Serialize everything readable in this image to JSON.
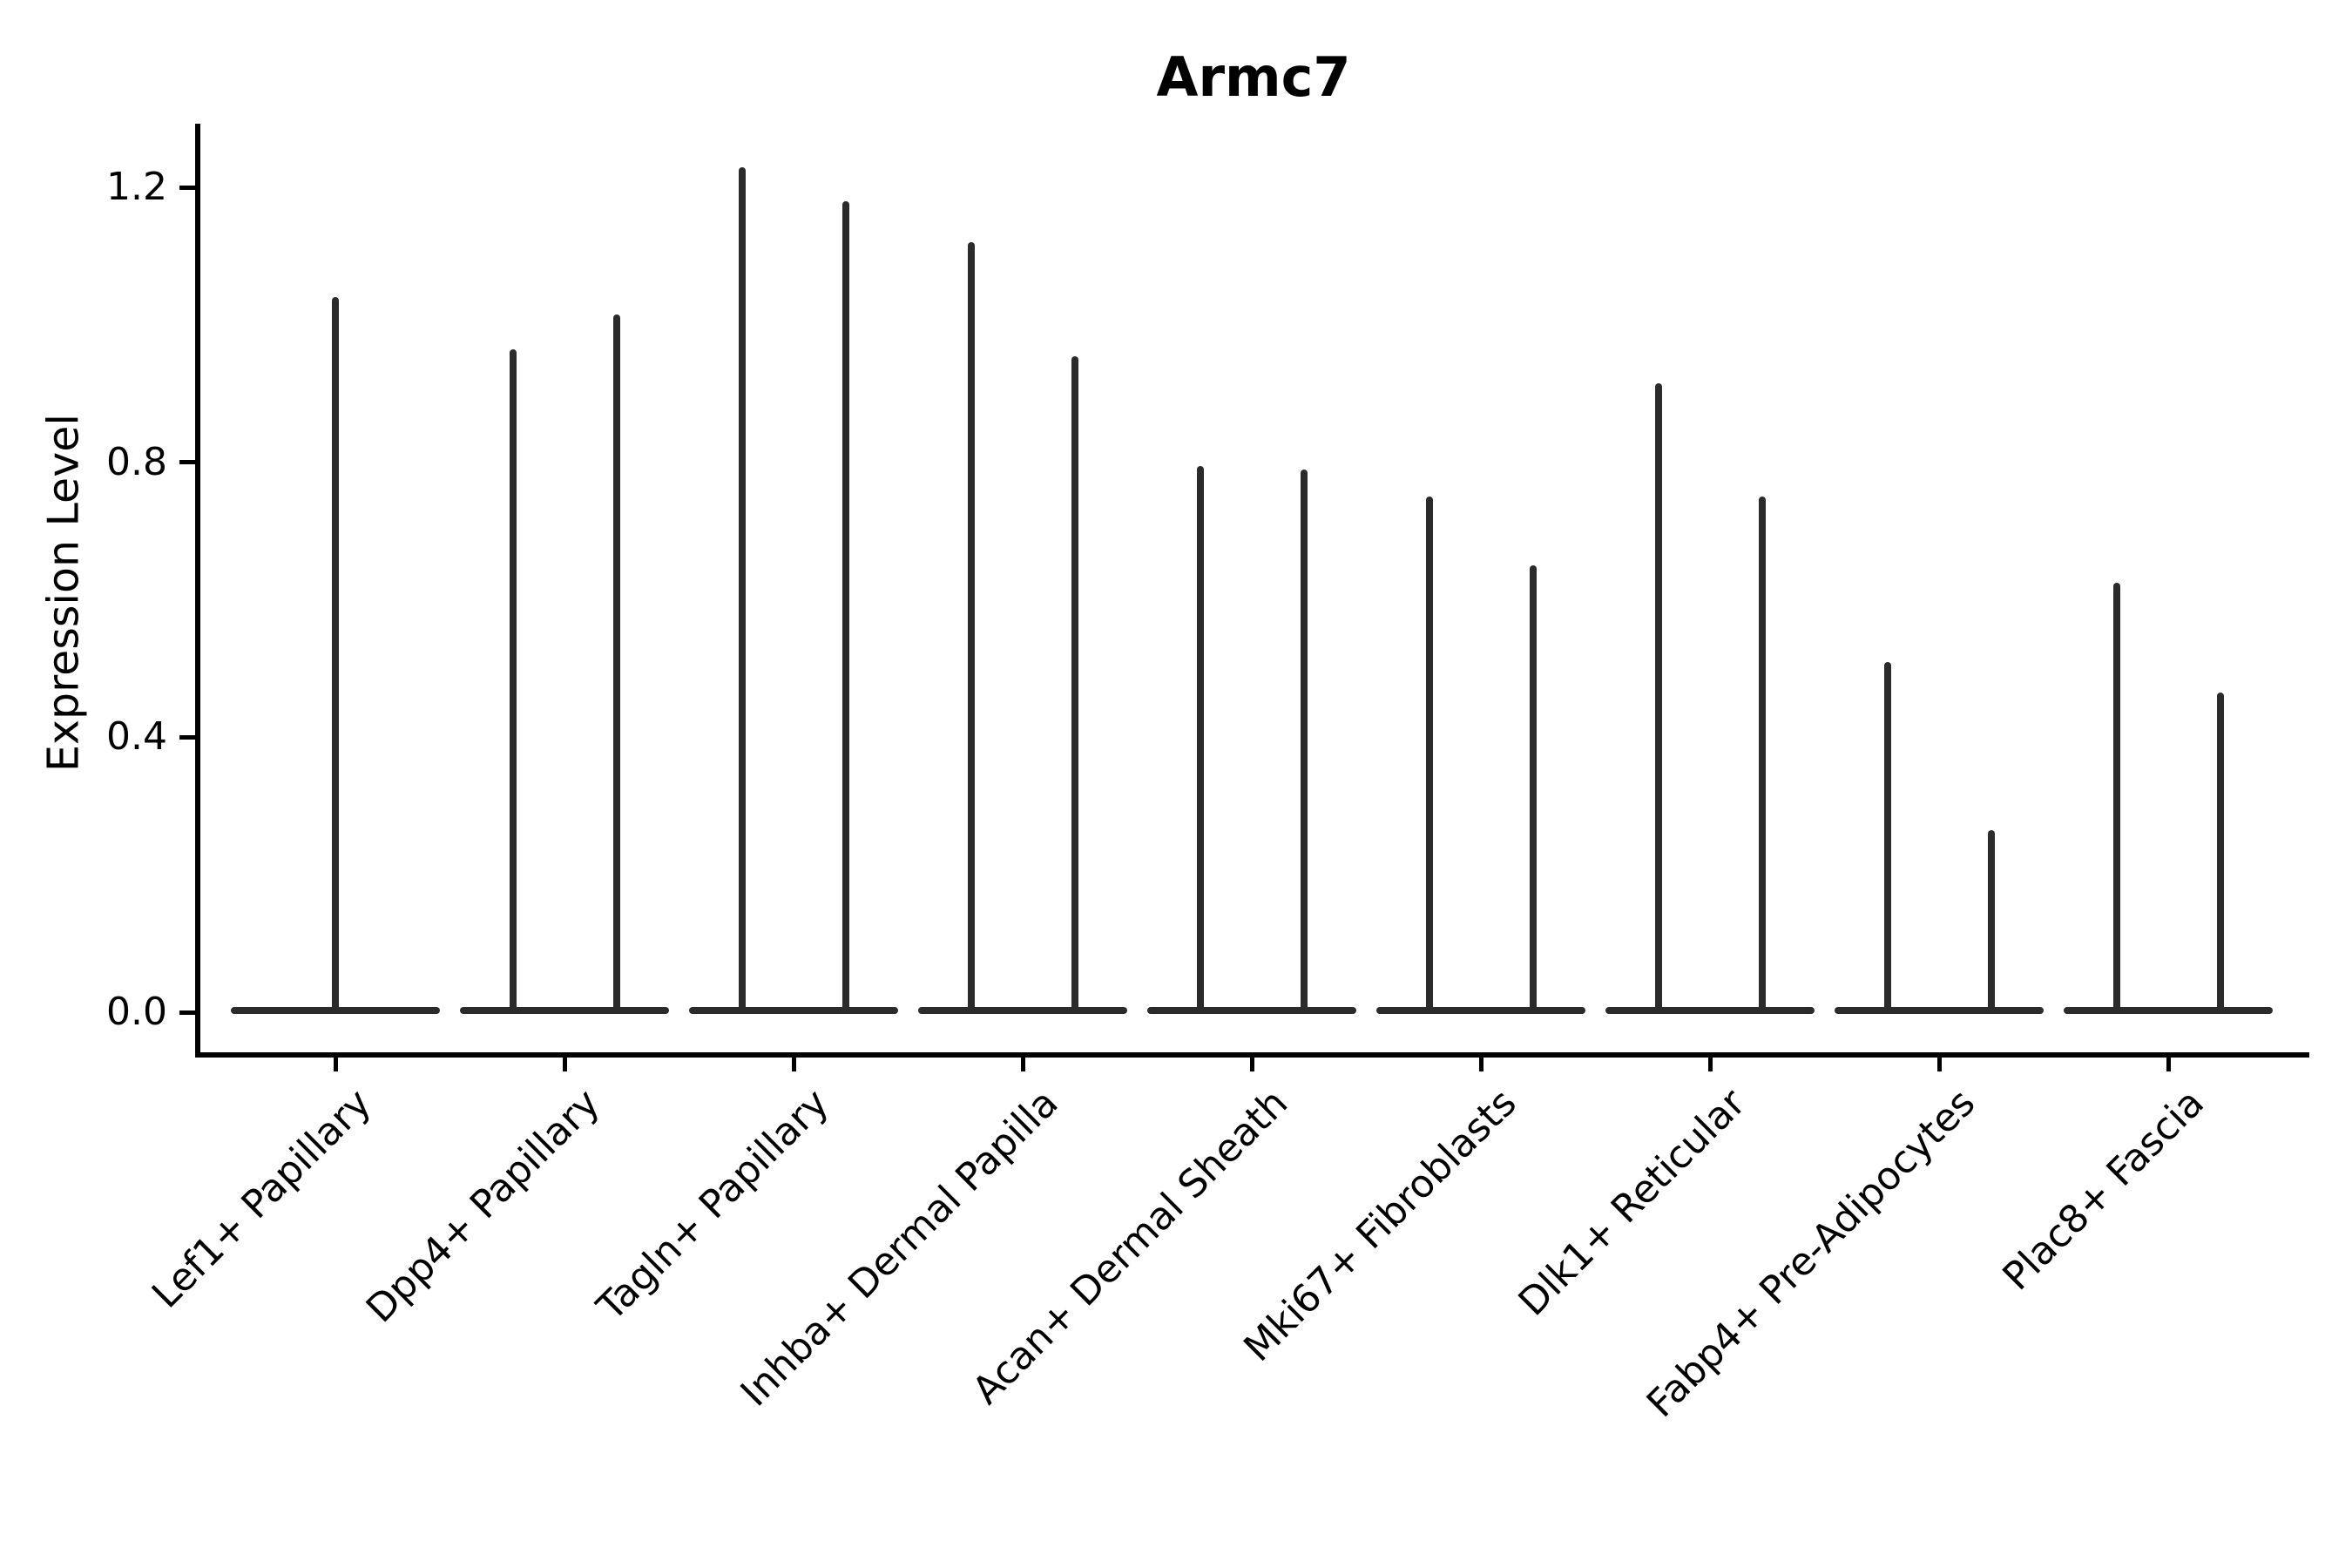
{
  "chart_data": {
    "type": "violin",
    "title": "Armc7",
    "ylabel": "Expression Level",
    "xlabel": "",
    "yticks": [
      "0.0",
      "0.4",
      "0.8",
      "1.2"
    ],
    "ytick_values": [
      0.0,
      0.4,
      0.8,
      1.2
    ],
    "ylim": [
      -0.06,
      1.29
    ],
    "grid": false,
    "legend": "none",
    "background": "#ffffff",
    "axis_color": "#000000",
    "violin_color": "#2b2b2b",
    "categories": [
      "Lef1+ Papillary",
      "Dpp4+ Papillary",
      "Tagln+ Papillary",
      "Inhba+ Dermal Papilla",
      "Acan+ Dermal Sheath",
      "Mki67+ Fibroblasts",
      "Dlk1+ Reticular",
      "Fabp4+ Pre-Adipocytes",
      "Plac8+ Fascia"
    ],
    "series": [
      {
        "category": "Lef1+ Papillary",
        "peaks": [
          1.04
        ]
      },
      {
        "category": "Dpp4+ Papillary",
        "peaks": [
          0.965,
          1.015
        ]
      },
      {
        "category": "Tagln+ Papillary",
        "peaks": [
          1.23,
          1.18
        ]
      },
      {
        "category": "Inhba+ Dermal Papilla",
        "peaks": [
          1.12,
          0.955
        ]
      },
      {
        "category": "Acan+ Dermal Sheath",
        "peaks": [
          0.795,
          0.79
        ]
      },
      {
        "category": "Mki67+ Fibroblasts",
        "peaks": [
          0.75,
          0.65
        ]
      },
      {
        "category": "Dlk1+ Reticular",
        "peaks": [
          0.915,
          0.75
        ]
      },
      {
        "category": "Fabp4+ Pre-Adipocytes",
        "peaks": [
          0.51,
          0.265
        ]
      },
      {
        "category": "Plac8+ Fascia",
        "peaks": [
          0.625,
          0.465
        ]
      }
    ]
  }
}
